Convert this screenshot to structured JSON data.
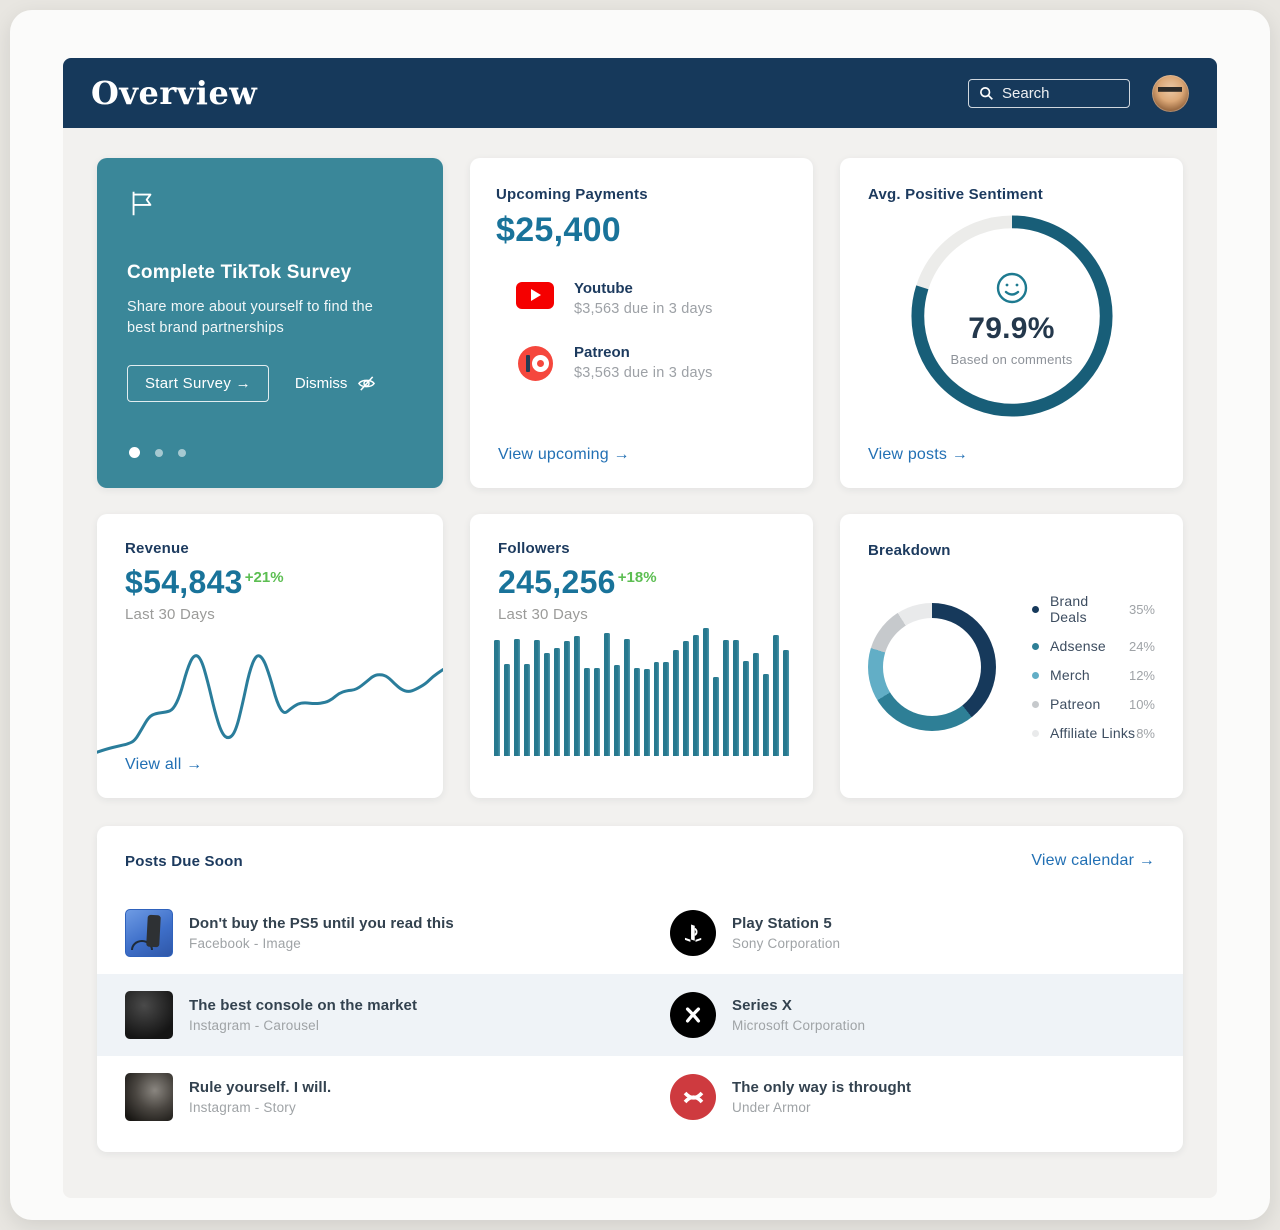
{
  "colors": {
    "header_navy": "#16395B",
    "survey_teal": "#3A8799",
    "accent_teal": "#19739A",
    "positive_green": "#5CBE52",
    "link_blue": "#2270B4",
    "ring_progress": "#185E78",
    "ring_track": "#ECECEA",
    "chart_teal": "#27798F",
    "youtube_red": "#F50000",
    "patreon_coral": "#F5473D",
    "underarmour_red": "#CE3A3F"
  },
  "header": {
    "title": "Overview",
    "search_placeholder": "Search"
  },
  "survey_card": {
    "title": "Complete TikTok Survey",
    "description": "Share more about yourself to find the best brand partnerships",
    "start_button": "Start Survey →",
    "dismiss_label": "Dismiss",
    "dots": {
      "count": 3,
      "active": 0
    }
  },
  "payments_card": {
    "title": "Upcoming Payments",
    "total": "$25,400",
    "items": [
      {
        "icon": "youtube-icon",
        "name": "Youtube",
        "detail": "$3,563 due in 3 days"
      },
      {
        "icon": "patreon-icon",
        "name": "Patreon",
        "detail": "$3,563 due in 3 days"
      }
    ],
    "link": "View upcoming →"
  },
  "sentiment_card": {
    "title": "Avg. Positive Sentiment",
    "value_label": "79.9%",
    "caption": "Based on comments",
    "link": "View posts →",
    "chart": {
      "type": "ring",
      "value": 79.9,
      "max": 100
    }
  },
  "revenue_card": {
    "title": "Revenue",
    "value": "$54,843",
    "delta": "+21%",
    "period": "Last 30 Days",
    "link": "View all →",
    "chart": {
      "type": "line",
      "points": [
        [
          0,
          10
        ],
        [
          3,
          13
        ],
        [
          6,
          15
        ],
        [
          9,
          17
        ],
        [
          11,
          20
        ],
        [
          13,
          30
        ],
        [
          15,
          40
        ],
        [
          17,
          43
        ],
        [
          20,
          44
        ],
        [
          22,
          46
        ],
        [
          24,
          58
        ],
        [
          26,
          80
        ],
        [
          28,
          93
        ],
        [
          30,
          90
        ],
        [
          32,
          70
        ],
        [
          34,
          45
        ],
        [
          36,
          26
        ],
        [
          38,
          21
        ],
        [
          40,
          27
        ],
        [
          42,
          50
        ],
        [
          44,
          78
        ],
        [
          46,
          93
        ],
        [
          48,
          90
        ],
        [
          50,
          74
        ],
        [
          52,
          52
        ],
        [
          54,
          42
        ],
        [
          56,
          47
        ],
        [
          58,
          51
        ],
        [
          60,
          52
        ],
        [
          63,
          51
        ],
        [
          66,
          52
        ],
        [
          68,
          55
        ],
        [
          70,
          60
        ],
        [
          72,
          62
        ],
        [
          75,
          63
        ],
        [
          78,
          70
        ],
        [
          80,
          75
        ],
        [
          82,
          76
        ],
        [
          84,
          74
        ],
        [
          86,
          68
        ],
        [
          88,
          63
        ],
        [
          90,
          61
        ],
        [
          92,
          63
        ],
        [
          95,
          68
        ],
        [
          97,
          74
        ],
        [
          100,
          80
        ]
      ]
    }
  },
  "followers_card": {
    "title": "Followers",
    "value": "245,256",
    "delta": "+18%",
    "period": "Last 30 Days",
    "chart": {
      "type": "bar",
      "values": [
        88,
        70,
        89,
        70,
        88,
        78,
        82,
        87,
        91,
        67,
        67,
        93,
        69,
        89,
        67,
        66,
        71,
        71,
        80,
        87,
        92,
        97,
        60,
        88,
        88,
        72,
        78,
        62,
        92,
        80
      ]
    }
  },
  "breakdown_card": {
    "title": "Breakdown",
    "chart": {
      "type": "donut",
      "segments": [
        {
          "label": "Brand Deals",
          "percent": 35,
          "color": "#16395B"
        },
        {
          "label": "Adsense",
          "percent": 24,
          "color": "#2E7F96"
        },
        {
          "label": "Merch",
          "percent": 12,
          "color": "#62AEC6"
        },
        {
          "label": "Patreon",
          "percent": 10,
          "color": "#C6C9CC"
        },
        {
          "label": "Affiliate Links",
          "percent": 8,
          "color": "#E9EAEB"
        }
      ]
    }
  },
  "posts_card": {
    "title": "Posts Due Soon",
    "link": "View calendar →",
    "rows": [
      {
        "post": {
          "title": "Don't buy the PS5 until you read this",
          "meta": "Facebook - Image",
          "thumb": "ps5-thumbnail"
        },
        "brand": {
          "name": "Play Station 5",
          "meta": "Sony Corporation",
          "logo": "playstation-logo"
        }
      },
      {
        "post": {
          "title": "The best console on the market",
          "meta": "Instagram - Carousel",
          "thumb": "xbox-thumbnail"
        },
        "brand": {
          "name": "Series X",
          "meta": "Microsoft Corporation",
          "logo": "xbox-logo"
        }
      },
      {
        "post": {
          "title": "Rule yourself. I will.",
          "meta": "Instagram - Story",
          "thumb": "shoe-thumbnail"
        },
        "brand": {
          "name": "The only way is throught",
          "meta": "Under Armor",
          "logo": "under-armour-logo"
        }
      }
    ]
  }
}
